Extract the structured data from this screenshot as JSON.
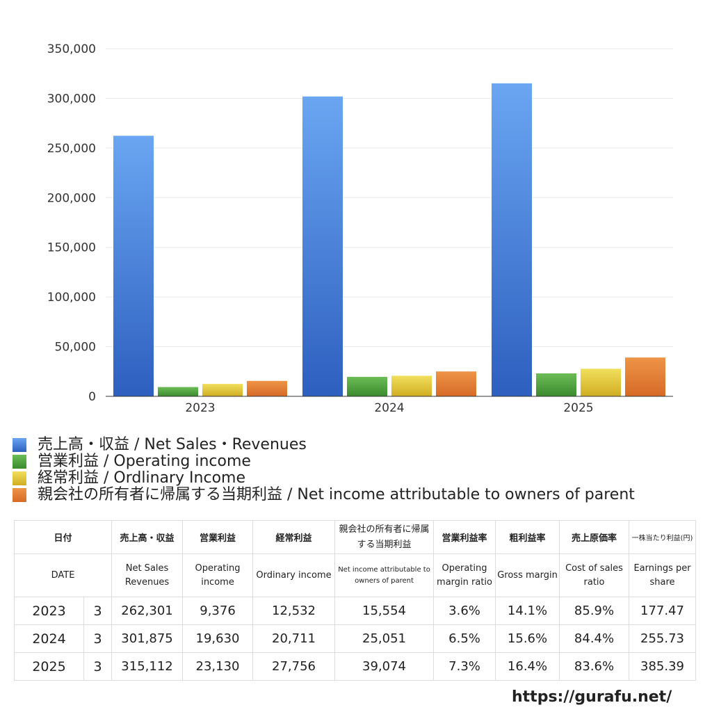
{
  "chart_data": {
    "type": "bar",
    "categories": [
      "2023",
      "2024",
      "2025"
    ],
    "series": [
      {
        "name": "売上高・収益 / Net Sales・Revenues",
        "values": [
          262301,
          301875,
          315112
        ]
      },
      {
        "name": "営業利益 / Operating income",
        "values": [
          9376,
          19630,
          23130
        ]
      },
      {
        "name": "経常利益 / Ordlinary Income",
        "values": [
          12532,
          20711,
          27756
        ]
      },
      {
        "name": "親会社の所有者に帰属する当期利益 / Net income attributable to owners of parent",
        "values": [
          15554,
          25051,
          39074
        ]
      }
    ],
    "ylim": [
      0,
      350000
    ],
    "yticks": [
      "0",
      "50,000",
      "100,000",
      "150,000",
      "200,000",
      "250,000",
      "300,000",
      "350,000"
    ],
    "grid": true,
    "legend_position": "bottom",
    "colors": {
      "series_top": [
        "#6aa6f2",
        "#6cbd56",
        "#f1df5c",
        "#ee9447"
      ],
      "series_bottom": [
        "#2d5fbf",
        "#3b8a2e",
        "#d0ad22",
        "#d66a26"
      ]
    }
  },
  "legend": [
    "売上高・収益 / Net Sales・Revenues",
    "営業利益 / Operating income",
    "経常利益 / Ordlinary Income",
    "親会社の所有者に帰属する当期利益 / Net income attributable to owners of parent"
  ],
  "table": {
    "date_jp": "日付",
    "date_en": "DATE",
    "cols_jp": [
      "売上高・収益",
      "営業利益",
      "経常利益",
      "親会社の所有者に帰属する当期利益",
      "営業利益率",
      "粗利益率",
      "売上原価率",
      "一株当たり利益(円)"
    ],
    "cols_en": [
      "Net Sales Revenues",
      "Operating income",
      "Ordinary income",
      "Net income attributable to owners of parent",
      "Operating margin ratio",
      "Gross margin",
      "Cost of sales ratio",
      "Earnings per share"
    ],
    "rows": [
      {
        "year": "2023",
        "month": "3",
        "cells": [
          "262,301",
          "9,376",
          "12,532",
          "15,554",
          "3.6%",
          "14.1%",
          "85.9%",
          "177.47"
        ]
      },
      {
        "year": "2024",
        "month": "3",
        "cells": [
          "301,875",
          "19,630",
          "20,711",
          "25,051",
          "6.5%",
          "15.6%",
          "84.4%",
          "255.73"
        ]
      },
      {
        "year": "2025",
        "month": "3",
        "cells": [
          "315,112",
          "23,130",
          "27,756",
          "39,074",
          "7.3%",
          "16.4%",
          "83.6%",
          "385.39"
        ]
      }
    ]
  },
  "footer_url": "https://gurafu.net/"
}
